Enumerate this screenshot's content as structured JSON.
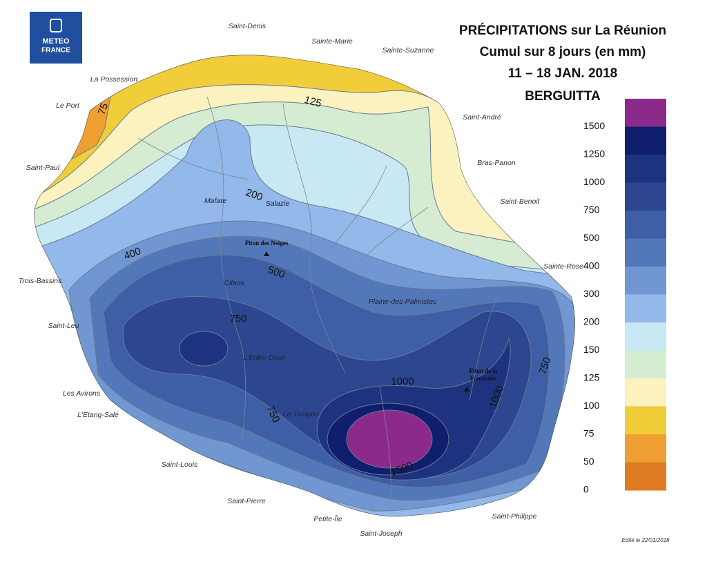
{
  "logo": {
    "lines": [
      "METEO",
      "FRANCE"
    ]
  },
  "title": {
    "lines": [
      "PRÉCIPITATIONS sur La Réunion",
      "Cumul sur 8 jours (en mm)",
      "11 – 18 JAN. 2018",
      "BERGUITTA"
    ]
  },
  "legend": {
    "items": [
      {
        "value": 1500,
        "color": "#8c2a8c"
      },
      {
        "value": 1250,
        "color": "#0f1f6e"
      },
      {
        "value": 1000,
        "color": "#1d3380"
      },
      {
        "value": 750,
        "color": "#2c4790"
      },
      {
        "value": 500,
        "color": "#3e5fa6"
      },
      {
        "value": 400,
        "color": "#5378b9"
      },
      {
        "value": 300,
        "color": "#7197d2"
      },
      {
        "value": 200,
        "color": "#93b8ea"
      },
      {
        "value": 150,
        "color": "#c8e9f3"
      },
      {
        "value": 125,
        "color": "#d5ecd2"
      },
      {
        "value": 100,
        "color": "#fbf2bf"
      },
      {
        "value": 75,
        "color": "#f2cd3a"
      },
      {
        "value": 50,
        "color": "#ef9f31"
      },
      {
        "value": 0,
        "color": "#df7b22"
      }
    ]
  },
  "places": [
    "Saint-Denis",
    "Sainte-Marie",
    "Sainte-Suzanne",
    "La Possession",
    "Le Port",
    "Saint-André",
    "Saint-Paul",
    "Bras-Panon",
    "Saint-Benoit",
    "Sainte-Rose",
    "Trois-Bassins",
    "Saint-Leu",
    "Les Avirons",
    "L'Etang-Salé",
    "Saint-Louis",
    "Saint-Pierre",
    "Petite-Île",
    "Saint-Philippe",
    "Saint-Joseph"
  ],
  "interior": [
    "Mafate",
    "Salazie",
    "Cilaos",
    "Plaine-des-Palmistes",
    "L'Entre-Deux",
    "Le Tampon"
  ],
  "summits": {
    "piton_des_neiges": "Piton des Neiges",
    "fournaise": [
      "Piton de la",
      "Fournaise"
    ]
  },
  "contour_labels": [
    75,
    125,
    200,
    400,
    500,
    750,
    1000,
    1000,
    750,
    750,
    1500
  ],
  "footer": "Edité le 22/01/2018"
}
